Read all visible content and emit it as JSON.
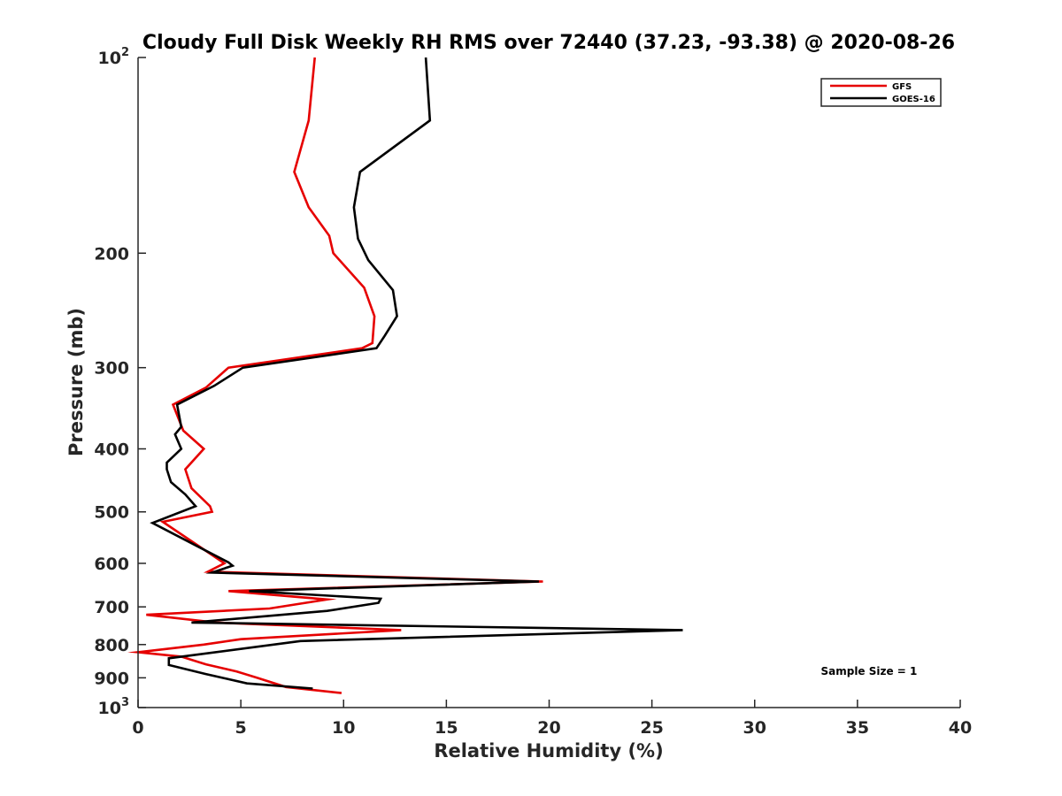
{
  "chart_data": {
    "type": "line",
    "title": "Cloudy Full Disk Weekly RH RMS over 72440 (37.23, -93.38) @ 2020-08-26",
    "xlabel": "Relative Humidity (%)",
    "ylabel": "Pressure (mb)",
    "xlim": [
      0,
      40
    ],
    "ylim": [
      100,
      1000
    ],
    "y_scale": "log",
    "y_reversed": true,
    "grid": false,
    "legend_position": "top-right",
    "x_ticks": [
      "0",
      "5",
      "10",
      "15",
      "20",
      "25",
      "30",
      "35",
      "40"
    ],
    "x_tick_values": [
      0,
      5,
      10,
      15,
      20,
      25,
      30,
      35,
      40
    ],
    "y_ticks": [
      {
        "value": 100,
        "base": "10",
        "exp": "2"
      },
      {
        "value": 200,
        "base": "200",
        "exp": ""
      },
      {
        "value": 300,
        "base": "300",
        "exp": ""
      },
      {
        "value": 400,
        "base": "400",
        "exp": ""
      },
      {
        "value": 500,
        "base": "500",
        "exp": ""
      },
      {
        "value": 600,
        "base": "600",
        "exp": ""
      },
      {
        "value": 700,
        "base": "700",
        "exp": ""
      },
      {
        "value": 800,
        "base": "800",
        "exp": ""
      },
      {
        "value": 900,
        "base": "900",
        "exp": ""
      },
      {
        "value": 1000,
        "base": "10",
        "exp": "3"
      }
    ],
    "series": [
      {
        "name": "GFS",
        "color": "#e60000",
        "points": [
          [
            8.6,
            100
          ],
          [
            8.3,
            125
          ],
          [
            7.6,
            150
          ],
          [
            8.3,
            170
          ],
          [
            9.3,
            188
          ],
          [
            9.5,
            200
          ],
          [
            11.0,
            226
          ],
          [
            11.5,
            250
          ],
          [
            11.4,
            275
          ],
          [
            10.9,
            280
          ],
          [
            4.4,
            300
          ],
          [
            3.3,
            322
          ],
          [
            1.7,
            342
          ],
          [
            2.2,
            375
          ],
          [
            3.2,
            400
          ],
          [
            2.3,
            430
          ],
          [
            2.6,
            460
          ],
          [
            3.5,
            490
          ],
          [
            3.6,
            500
          ],
          [
            1.2,
            518
          ],
          [
            4.2,
            600
          ],
          [
            3.4,
            618
          ],
          [
            19.7,
            640
          ],
          [
            4.4,
            662
          ],
          [
            9.2,
            682
          ],
          [
            6.4,
            704
          ],
          [
            0.4,
            720
          ],
          [
            3.8,
            740
          ],
          [
            12.8,
            760
          ],
          [
            5.0,
            785
          ],
          [
            3.2,
            800
          ],
          [
            0.0,
            822
          ],
          [
            2.1,
            835
          ],
          [
            3.3,
            858
          ],
          [
            4.8,
            880
          ],
          [
            5.8,
            900
          ],
          [
            7.2,
            930
          ],
          [
            9.9,
            950
          ]
        ]
      },
      {
        "name": "GOES-16",
        "color": "#000000",
        "points": [
          [
            14.0,
            100
          ],
          [
            14.2,
            125
          ],
          [
            10.8,
            150
          ],
          [
            10.5,
            170
          ],
          [
            10.7,
            190
          ],
          [
            11.2,
            205
          ],
          [
            12.4,
            228
          ],
          [
            12.6,
            250
          ],
          [
            12.0,
            268
          ],
          [
            11.6,
            280
          ],
          [
            5.1,
            300
          ],
          [
            3.7,
            320
          ],
          [
            1.9,
            342
          ],
          [
            2.1,
            370
          ],
          [
            1.8,
            380
          ],
          [
            2.1,
            400
          ],
          [
            1.4,
            420
          ],
          [
            1.4,
            430
          ],
          [
            1.6,
            450
          ],
          [
            2.3,
            470
          ],
          [
            2.8,
            490
          ],
          [
            0.7,
            520
          ],
          [
            4.4,
            598
          ],
          [
            4.6,
            605
          ],
          [
            3.6,
            620
          ],
          [
            19.5,
            640
          ],
          [
            5.4,
            662
          ],
          [
            11.8,
            680
          ],
          [
            11.7,
            690
          ],
          [
            9.2,
            710
          ],
          [
            2.6,
            740
          ],
          [
            26.5,
            760
          ],
          [
            7.9,
            790
          ],
          [
            1.5,
            840
          ],
          [
            1.5,
            860
          ],
          [
            3.3,
            888
          ],
          [
            5.3,
            918
          ],
          [
            8.5,
            935
          ]
        ]
      }
    ],
    "annotations": [
      {
        "text": "Sample Size = 1",
        "x": 35.5,
        "y": 880
      }
    ]
  }
}
